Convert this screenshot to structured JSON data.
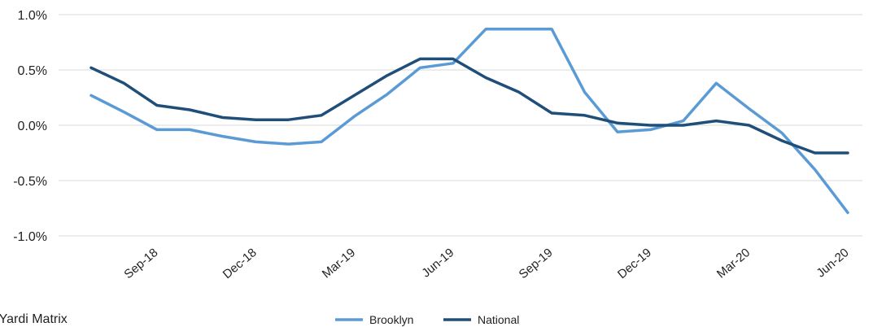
{
  "chart_data": {
    "type": "line",
    "title": "",
    "xlabel": "",
    "ylabel": "",
    "x": [
      "Jul-18",
      "Aug-18",
      "Sep-18",
      "Oct-18",
      "Nov-18",
      "Dec-18",
      "Jan-19",
      "Feb-19",
      "Mar-19",
      "Apr-19",
      "May-19",
      "Jun-19",
      "Jul-19",
      "Aug-19",
      "Sep-19",
      "Oct-19",
      "Nov-19",
      "Dec-19",
      "Jan-20",
      "Feb-20",
      "Mar-20",
      "Apr-20",
      "May-20",
      "Jun-20"
    ],
    "x_tick_labels": [
      "Sep-18",
      "Dec-18",
      "Mar-19",
      "Jun-19",
      "Sep-19",
      "Dec-19",
      "Mar-20",
      "Jun-20"
    ],
    "x_tick_index": [
      2,
      5,
      8,
      11,
      14,
      17,
      20,
      23
    ],
    "ylim": [
      -1.0,
      1.0
    ],
    "y_ticks": [
      1.0,
      0.5,
      0.0,
      -0.5,
      -1.0
    ],
    "y_tick_labels": [
      "1.0%",
      "0.5%",
      "0.0%",
      "-0.5%",
      "-1.0%"
    ],
    "grid": true,
    "legend_position": "bottom-center",
    "series": [
      {
        "name": "Brooklyn",
        "color": "#5b9bd5",
        "values": [
          0.27,
          0.12,
          -0.04,
          -0.04,
          -0.1,
          -0.15,
          -0.17,
          -0.15,
          0.08,
          0.28,
          0.52,
          0.56,
          0.87,
          0.87,
          0.87,
          0.3,
          -0.06,
          -0.04,
          0.04,
          0.38,
          0.15,
          -0.07,
          -0.4,
          -0.79
        ]
      },
      {
        "name": "National",
        "color": "#1f4e79",
        "values": [
          0.52,
          0.38,
          0.18,
          0.14,
          0.07,
          0.05,
          0.05,
          0.09,
          0.27,
          0.45,
          0.6,
          0.6,
          0.43,
          0.3,
          0.11,
          0.09,
          0.02,
          0.0,
          0.0,
          0.04,
          0.0,
          -0.14,
          -0.25,
          -0.25
        ]
      }
    ]
  },
  "source_text": ": Yardi Matrix"
}
